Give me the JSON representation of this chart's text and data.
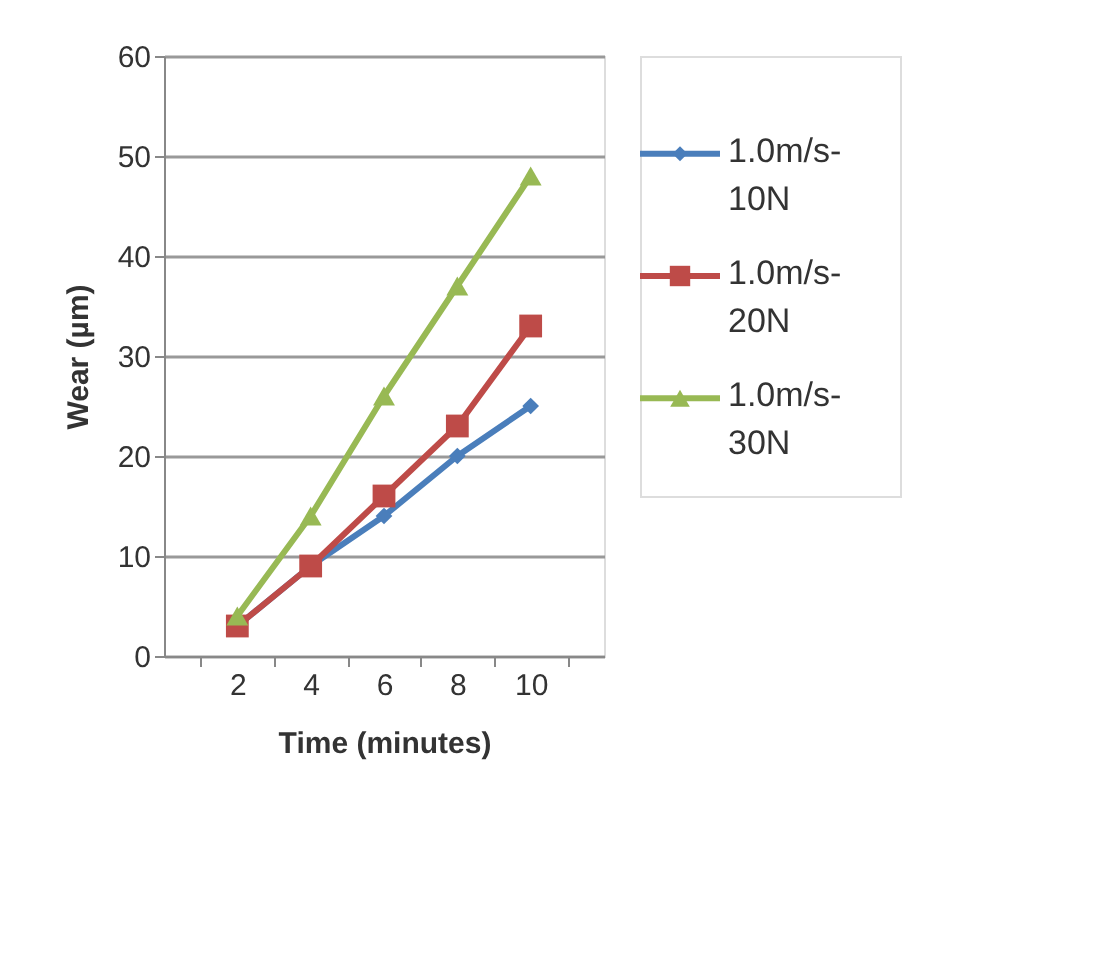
{
  "chart_data": {
    "type": "line",
    "xlabel": "Time (minutes)",
    "ylabel": "Wear (µm)",
    "categories": [
      "2",
      "4",
      "6",
      "8",
      "10"
    ],
    "series": [
      {
        "name": "1.0m/s-10N",
        "color": "#4a7ebb",
        "marker": "diamond",
        "values": [
          3,
          9,
          14,
          20,
          25
        ]
      },
      {
        "name": "1.0m/s-20N",
        "color": "#be4b48",
        "marker": "square",
        "values": [
          3,
          9,
          16,
          23,
          33
        ]
      },
      {
        "name": "1.0m/s-30N",
        "color": "#98b954",
        "marker": "triangle",
        "values": [
          4,
          14,
          26,
          37,
          48
        ]
      }
    ],
    "ylim": [
      0,
      60
    ],
    "yticks": [
      0,
      10,
      20,
      30,
      40,
      50,
      60
    ],
    "grid": "y",
    "legend": "right"
  }
}
